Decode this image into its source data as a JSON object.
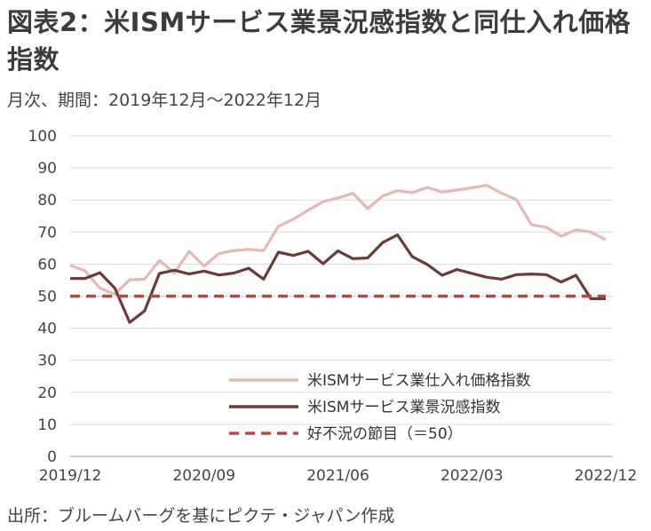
{
  "title": "図表2：米ISMサービス業景況感指数と同仕入れ価格指数",
  "subtitle": "月次、期間：2019年12月～2022年12月",
  "source": "出所：ブルームバーグを基にピクテ・ジャパン作成",
  "chart_data": {
    "type": "line",
    "x_ticks": [
      "2019/12",
      "2020/09",
      "2021/06",
      "2022/03",
      "2022/12"
    ],
    "x_start": "2019/12",
    "x_end": "2022/12",
    "ylim": [
      0,
      100
    ],
    "y_ticks": [
      0,
      10,
      20,
      30,
      40,
      50,
      60,
      70,
      80,
      90,
      100
    ],
    "grid": true,
    "legend_position": "bottom-right",
    "series": [
      {
        "name": "米ISMサービス業仕入れ価格指数",
        "color": "#e6b8b3",
        "style": "solid",
        "values": [
          59.6,
          57.9,
          52.5,
          50.6,
          55.1,
          55.3,
          61.1,
          57.2,
          64.0,
          59.4,
          63.3,
          64.2,
          64.6,
          64.2,
          71.8,
          74.0,
          76.8,
          79.5,
          80.6,
          82.1,
          77.3,
          81.2,
          82.9,
          82.3,
          83.9,
          82.5,
          83.1,
          83.8,
          84.6,
          82.1,
          80.1,
          72.3,
          71.5,
          68.7,
          70.7,
          70.0,
          67.6
        ]
      },
      {
        "name": "米ISMサービス業景況感指数",
        "color": "#6e3a38",
        "style": "solid",
        "values": [
          55.5,
          55.5,
          57.3,
          52.5,
          41.8,
          45.4,
          57.1,
          58.1,
          56.9,
          57.8,
          56.6,
          57.2,
          58.7,
          55.3,
          63.7,
          62.7,
          64.0,
          60.1,
          64.1,
          61.7,
          61.9,
          66.7,
          69.1,
          62.3,
          59.9,
          56.5,
          58.3,
          57.1,
          55.9,
          55.3,
          56.7,
          56.9,
          56.7,
          54.4,
          56.5,
          49.2,
          49.2
        ]
      },
      {
        "name": "好不況の節目（＝50）",
        "color": "#b34a48",
        "style": "dashed",
        "values": [
          50,
          50,
          50,
          50,
          50,
          50,
          50,
          50,
          50,
          50,
          50,
          50,
          50,
          50,
          50,
          50,
          50,
          50,
          50,
          50,
          50,
          50,
          50,
          50,
          50,
          50,
          50,
          50,
          50,
          50,
          50,
          50,
          50,
          50,
          50,
          50,
          50
        ]
      }
    ]
  }
}
